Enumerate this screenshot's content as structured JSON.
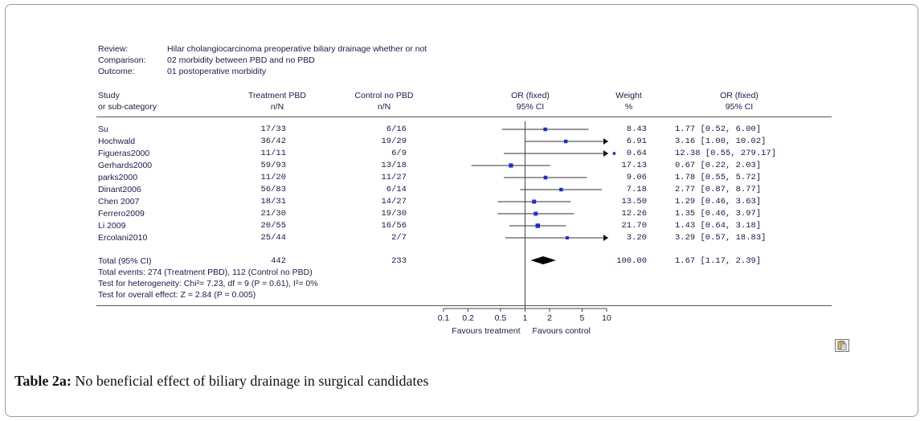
{
  "header": {
    "review_label": "Review:",
    "review_value": "Hilar cholangiocarcinoma preoperative biliary drainage whether or not",
    "comparison_label": "Comparison:",
    "comparison_value": "02 morbidity between PBD  and no PBD",
    "outcome_label": "Outcome:",
    "outcome_value": "01 postoperative morbidity"
  },
  "columns": {
    "study_1": "Study",
    "study_2": "or sub-category",
    "treatment_1": "Treatment PBD",
    "treatment_2": "n/N",
    "control_1": "Control no PBD",
    "control_2": "n/N",
    "or_1": "OR (fixed)",
    "or_2": "95% CI",
    "weight_1": "Weight",
    "weight_2": "%",
    "orv_1": "OR (fixed)",
    "orv_2": "95% CI"
  },
  "rows": [
    {
      "study": "Su",
      "treatment": "17/33",
      "control": "6/16",
      "weight": "8.43",
      "or_text": "1.77 [0.52, 6.00]"
    },
    {
      "study": "Hochwald",
      "treatment": "36/42",
      "control": "19/29",
      "weight": "6.91",
      "or_text": "3.16 [1.00, 10.02]"
    },
    {
      "study": "Figueras2000",
      "treatment": "11/11",
      "control": "6/9",
      "weight": "0.64",
      "or_text": "12.38 [0.55, 279.17]"
    },
    {
      "study": "Gerhards2000",
      "treatment": "59/93",
      "control": "13/18",
      "weight": "17.13",
      "or_text": "0.67 [0.22, 2.03]"
    },
    {
      "study": "parks2000",
      "treatment": "11/20",
      "control": "11/27",
      "weight": "9.06",
      "or_text": "1.78 [0.55, 5.72]"
    },
    {
      "study": "Dinant2006",
      "treatment": "56/83",
      "control": "6/14",
      "weight": "7.18",
      "or_text": "2.77 [0.87, 8.77]"
    },
    {
      "study": "Chen 2007",
      "treatment": "18/31",
      "control": "14/27",
      "weight": "13.50",
      "or_text": "1.29 [0.46, 3.63]"
    },
    {
      "study": "Ferrero2009",
      "treatment": "21/30",
      "control": "19/30",
      "weight": "12.26",
      "or_text": "1.35 [0.46, 3.97]"
    },
    {
      "study": "Li 2009",
      "treatment": "20/55",
      "control": "16/56",
      "weight": "21.70",
      "or_text": "1.43 [0.64, 3.18]"
    },
    {
      "study": "Ercolani2010",
      "treatment": "25/44",
      "control": "2/7",
      "weight": "3.20",
      "or_text": "3.29 [0.57, 18.83]"
    }
  ],
  "total": {
    "label": "Total (95% CI)",
    "treatment": "442",
    "control": "233",
    "weight": "100.00",
    "or_text": "1.67 [1.17, 2.39]",
    "events": "Total events: 274 (Treatment PBD), 112 (Control no PBD)",
    "heterogeneity": "Test for heterogeneity: Chi²= 7.23, df = 9 (P = 0.61), I²= 0%",
    "overall": "Test for overall effect: Z = 2.84 (P = 0.005)"
  },
  "axis": {
    "ticks": [
      0.1,
      0.2,
      0.5,
      1,
      2,
      5,
      10
    ],
    "tick_labels": [
      "0.1",
      "0.2",
      "0.5",
      "1",
      "2",
      "5",
      "10"
    ],
    "favours_left": "Favours treatment",
    "favours_right": "Favours control"
  },
  "chart_data": {
    "type": "scatter",
    "title": "OR (fixed) 95% CI",
    "scale": "log",
    "xlim": [
      0.1,
      10
    ],
    "studies": [
      "Su",
      "Hochwald",
      "Figueras2000",
      "Gerhards2000",
      "parks2000",
      "Dinant2006",
      "Chen 2007",
      "Ferrero2009",
      "Li 2009",
      "Ercolani2010"
    ],
    "or": [
      1.77,
      3.16,
      12.38,
      0.67,
      1.78,
      2.77,
      1.29,
      1.35,
      1.43,
      3.29
    ],
    "ci_low": [
      0.52,
      1.0,
      0.55,
      0.22,
      0.55,
      0.87,
      0.46,
      0.46,
      0.64,
      0.57
    ],
    "ci_high": [
      6.0,
      10.02,
      279.17,
      2.03,
      5.72,
      8.77,
      3.63,
      3.97,
      3.18,
      18.83
    ],
    "weight": [
      8.43,
      6.91,
      0.64,
      17.13,
      9.06,
      7.18,
      13.5,
      12.26,
      21.7,
      3.2
    ],
    "pooled": {
      "or": 1.67,
      "ci_low": 1.17,
      "ci_high": 2.39
    },
    "xlabel_left": "Favours treatment",
    "xlabel_right": "Favours control"
  },
  "caption": {
    "label": "Table 2a:",
    "text": " No beneficial effect of biliary drainage in surgical candidates"
  },
  "colors": {
    "marker": "#1e2fc8",
    "text": "#1a1a4a"
  },
  "icons": {
    "paste": "clipboard-icon"
  }
}
